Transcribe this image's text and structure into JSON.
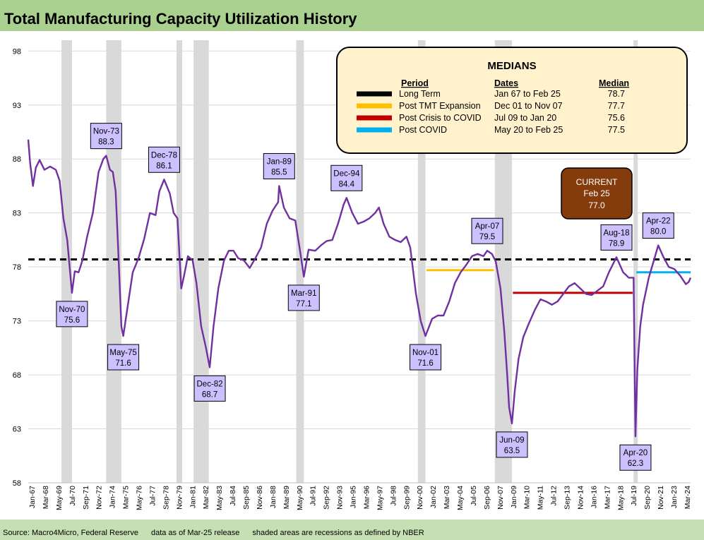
{
  "chart_data": {
    "type": "line",
    "title": "Total Manufacturing Capacity Utilization History",
    "footer": {
      "source": "Source: Macro4Micro, Federal Reserve",
      "data_as_of": "data as of Mar-25 release",
      "shading_note": "shaded areas are recessions as defined by NBER"
    },
    "ylim": [
      58,
      99
    ],
    "y_ticks": [
      58,
      63,
      68,
      73,
      78,
      83,
      88,
      93,
      98
    ],
    "x_range": [
      "1967-01",
      "2025-02"
    ],
    "x_tick_labels": [
      "Jan-67",
      "Mar-68",
      "May-69",
      "Jul-70",
      "Sep-71",
      "Nov-72",
      "Jan-74",
      "Mar-75",
      "May-76",
      "Jul-77",
      "Sep-78",
      "Nov-79",
      "Jan-81",
      "Mar-82",
      "May-83",
      "Jul-84",
      "Sep-85",
      "Nov-86",
      "Jan-88",
      "Mar-89",
      "May-90",
      "Jul-91",
      "Sep-92",
      "Nov-93",
      "Jan-95",
      "Mar-96",
      "May-97",
      "Jul-98",
      "Sep-99",
      "Nov-00",
      "Jan-02",
      "Mar-03",
      "May-04",
      "Jul-05",
      "Sep-06",
      "Nov-07",
      "Jan-09",
      "Mar-10",
      "May-11",
      "Jul-12",
      "Sep-13",
      "Nov-14",
      "Jan-16",
      "Mar-17",
      "May-18",
      "Jul-19",
      "Sep-20",
      "Nov-21",
      "Jan-23",
      "Mar-24"
    ],
    "series_color": "#7030a0",
    "series": [
      {
        "points": [
          [
            "1967-01",
            89.8
          ],
          [
            "1967-03",
            87.6
          ],
          [
            "1967-06",
            85.5
          ],
          [
            "1967-09",
            87.2
          ],
          [
            "1968-01",
            87.9
          ],
          [
            "1968-06",
            87.0
          ],
          [
            "1968-12",
            87.3
          ],
          [
            "1969-06",
            87.0
          ],
          [
            "1969-10",
            86.0
          ],
          [
            "1970-02",
            82.5
          ],
          [
            "1970-06",
            80.5
          ],
          [
            "1970-11",
            75.6
          ],
          [
            "1971-02",
            77.6
          ],
          [
            "1971-06",
            77.5
          ],
          [
            "1971-10",
            78.6
          ],
          [
            "1972-03",
            80.8
          ],
          [
            "1972-09",
            83.0
          ],
          [
            "1973-03",
            86.8
          ],
          [
            "1973-08",
            88.0
          ],
          [
            "1973-11",
            88.3
          ],
          [
            "1974-03",
            87.0
          ],
          [
            "1974-06",
            86.8
          ],
          [
            "1974-09",
            85.0
          ],
          [
            "1974-12",
            79.0
          ],
          [
            "1975-03",
            72.5
          ],
          [
            "1975-05",
            71.6
          ],
          [
            "1975-09",
            74.0
          ],
          [
            "1976-03",
            77.5
          ],
          [
            "1976-09",
            78.8
          ],
          [
            "1977-03",
            80.6
          ],
          [
            "1977-09",
            83.0
          ],
          [
            "1978-03",
            82.8
          ],
          [
            "1978-07",
            85.0
          ],
          [
            "1978-12",
            86.1
          ],
          [
            "1979-06",
            84.8
          ],
          [
            "1979-10",
            83.0
          ],
          [
            "1980-02",
            82.5
          ],
          [
            "1980-06",
            76.0
          ],
          [
            "1980-09",
            77.2
          ],
          [
            "1981-01",
            79.0
          ],
          [
            "1981-06",
            78.6
          ],
          [
            "1981-10",
            76.5
          ],
          [
            "1982-03",
            72.5
          ],
          [
            "1982-08",
            70.5
          ],
          [
            "1982-12",
            68.7
          ],
          [
            "1983-04",
            72.5
          ],
          [
            "1983-09",
            76.0
          ],
          [
            "1984-03",
            78.6
          ],
          [
            "1984-08",
            79.5
          ],
          [
            "1985-01",
            79.5
          ],
          [
            "1985-06",
            78.8
          ],
          [
            "1985-12",
            78.6
          ],
          [
            "1986-06",
            77.9
          ],
          [
            "1986-12",
            78.8
          ],
          [
            "1987-06",
            79.8
          ],
          [
            "1987-12",
            82.0
          ],
          [
            "1988-06",
            83.2
          ],
          [
            "1988-12",
            84.0
          ],
          [
            "1989-01",
            85.5
          ],
          [
            "1989-06",
            83.5
          ],
          [
            "1989-12",
            82.5
          ],
          [
            "1990-06",
            82.3
          ],
          [
            "1990-11",
            79.5
          ],
          [
            "1991-03",
            77.1
          ],
          [
            "1991-08",
            79.6
          ],
          [
            "1992-03",
            79.5
          ],
          [
            "1992-09",
            80.0
          ],
          [
            "1993-03",
            80.4
          ],
          [
            "1993-09",
            80.5
          ],
          [
            "1994-03",
            82.0
          ],
          [
            "1994-09",
            83.8
          ],
          [
            "1994-12",
            84.4
          ],
          [
            "1995-06",
            83.0
          ],
          [
            "1995-12",
            82.0
          ],
          [
            "1996-06",
            82.2
          ],
          [
            "1996-12",
            82.5
          ],
          [
            "1997-06",
            83.0
          ],
          [
            "1997-10",
            83.5
          ],
          [
            "1998-03",
            82.0
          ],
          [
            "1998-09",
            80.8
          ],
          [
            "1999-03",
            80.5
          ],
          [
            "1999-09",
            80.3
          ],
          [
            "2000-03",
            80.8
          ],
          [
            "2000-07",
            79.8
          ],
          [
            "2001-01",
            75.5
          ],
          [
            "2001-06",
            73.0
          ],
          [
            "2001-11",
            71.6
          ],
          [
            "2002-06",
            73.2
          ],
          [
            "2002-12",
            73.5
          ],
          [
            "2003-06",
            73.5
          ],
          [
            "2003-12",
            74.8
          ],
          [
            "2004-06",
            76.5
          ],
          [
            "2004-12",
            77.5
          ],
          [
            "2005-06",
            78.2
          ],
          [
            "2005-12",
            79.0
          ],
          [
            "2006-06",
            79.2
          ],
          [
            "2006-12",
            79.0
          ],
          [
            "2007-04",
            79.5
          ],
          [
            "2007-09",
            79.2
          ],
          [
            "2008-01",
            78.5
          ],
          [
            "2008-06",
            76.0
          ],
          [
            "2008-10",
            72.0
          ],
          [
            "2009-01",
            68.0
          ],
          [
            "2009-03",
            65.0
          ],
          [
            "2009-06",
            63.5
          ],
          [
            "2009-09",
            66.5
          ],
          [
            "2010-01",
            69.5
          ],
          [
            "2010-06",
            71.5
          ],
          [
            "2010-12",
            72.8
          ],
          [
            "2011-06",
            74.0
          ],
          [
            "2011-12",
            75.0
          ],
          [
            "2012-06",
            74.8
          ],
          [
            "2012-12",
            74.5
          ],
          [
            "2013-06",
            74.8
          ],
          [
            "2013-12",
            75.5
          ],
          [
            "2014-06",
            76.2
          ],
          [
            "2014-12",
            76.5
          ],
          [
            "2015-06",
            76.0
          ],
          [
            "2015-12",
            75.5
          ],
          [
            "2016-06",
            75.4
          ],
          [
            "2016-12",
            75.8
          ],
          [
            "2017-06",
            76.2
          ],
          [
            "2017-12",
            77.5
          ],
          [
            "2018-08",
            78.9
          ],
          [
            "2019-03",
            77.5
          ],
          [
            "2019-09",
            77.0
          ],
          [
            "2020-02",
            77.0
          ],
          [
            "2020-04",
            62.3
          ],
          [
            "2020-06",
            68.5
          ],
          [
            "2020-09",
            72.5
          ],
          [
            "2020-12",
            74.5
          ],
          [
            "2021-06",
            77.0
          ],
          [
            "2021-12",
            78.8
          ],
          [
            "2022-04",
            80.0
          ],
          [
            "2022-09",
            79.0
          ],
          [
            "2023-03",
            78.0
          ],
          [
            "2023-09",
            77.8
          ],
          [
            "2024-03",
            77.2
          ],
          [
            "2024-09",
            76.4
          ],
          [
            "2024-12",
            76.6
          ],
          [
            "2025-02",
            77.0
          ]
        ]
      }
    ],
    "medians": {
      "title": "MEDIANS",
      "headers": {
        "period": "Period",
        "dates": "Dates",
        "median": "Median"
      },
      "rows": [
        {
          "period": "Long Term",
          "dates": "Jan 67 to Feb 25",
          "median": "78.7",
          "color": "#000000",
          "value": 78.7,
          "from": "1967-01",
          "to": "2025-02",
          "dashed": true
        },
        {
          "period": "Post TMT Expansion",
          "dates": "Dec 01 to Nov 07",
          "median": "77.7",
          "color": "#ffc000",
          "value": 77.7,
          "from": "2001-12",
          "to": "2007-11",
          "dashed": false
        },
        {
          "period": "Post Crisis to COVID",
          "dates": "Jul 09 to Jan 20",
          "median": "75.6",
          "color": "#c00000",
          "value": 75.6,
          "from": "2009-07",
          "to": "2020-01",
          "dashed": false
        },
        {
          "period": "Post COVID",
          "dates": "May 20 to Feb 25",
          "median": "77.5",
          "color": "#00b0f0",
          "value": 77.5,
          "from": "2020-05",
          "to": "2025-02",
          "dashed": false
        }
      ]
    },
    "current": {
      "label": "CURRENT",
      "date": "Feb 25",
      "value": "77.0"
    },
    "recessions": [
      [
        "1969-12",
        "1970-11"
      ],
      [
        "1973-11",
        "1975-03"
      ],
      [
        "1980-01",
        "1980-07"
      ],
      [
        "1981-07",
        "1982-11"
      ],
      [
        "1990-07",
        "1991-03"
      ],
      [
        "2001-03",
        "2001-11"
      ],
      [
        "2007-12",
        "2009-06"
      ],
      [
        "2020-02",
        "2020-04"
      ]
    ],
    "annotations": [
      {
        "date": "Nov-70",
        "value": "75.6",
        "x": "1970-11",
        "y": 75.6,
        "pos": "below"
      },
      {
        "date": "Nov-73",
        "value": "88.3",
        "x": "1973-11",
        "y": 88.3,
        "pos": "above"
      },
      {
        "date": "May-75",
        "value": "71.6",
        "x": "1975-05",
        "y": 71.6,
        "pos": "below"
      },
      {
        "date": "Dec-78",
        "value": "86.1",
        "x": "1978-12",
        "y": 86.1,
        "pos": "above"
      },
      {
        "date": "Dec-82",
        "value": "68.7",
        "x": "1982-12",
        "y": 68.7,
        "pos": "below"
      },
      {
        "date": "Jan-89",
        "value": "85.5",
        "x": "1989-01",
        "y": 85.5,
        "pos": "above"
      },
      {
        "date": "Mar-91",
        "value": "77.1",
        "x": "1991-03",
        "y": 77.1,
        "pos": "below"
      },
      {
        "date": "Dec-94",
        "value": "84.4",
        "x": "1994-12",
        "y": 84.4,
        "pos": "above"
      },
      {
        "date": "Nov-01",
        "value": "71.6",
        "x": "2001-11",
        "y": 71.6,
        "pos": "below"
      },
      {
        "date": "Apr-07",
        "value": "79.5",
        "x": "2007-04",
        "y": 79.5,
        "pos": "above"
      },
      {
        "date": "Jun-09",
        "value": "63.5",
        "x": "2009-06",
        "y": 63.5,
        "pos": "below"
      },
      {
        "date": "Aug-18",
        "value": "78.9",
        "x": "2018-08",
        "y": 78.9,
        "pos": "above"
      },
      {
        "date": "Apr-20",
        "value": "62.3",
        "x": "2020-04",
        "y": 62.3,
        "pos": "below"
      },
      {
        "date": "Apr-22",
        "value": "80.0",
        "x": "2022-04",
        "y": 80.0,
        "pos": "above"
      }
    ],
    "colors": {
      "box_fill": "#fff2cc",
      "current_fill": "#843c0c",
      "label_fill": "#ccc0ff",
      "recession": "#d9d9d9"
    }
  }
}
